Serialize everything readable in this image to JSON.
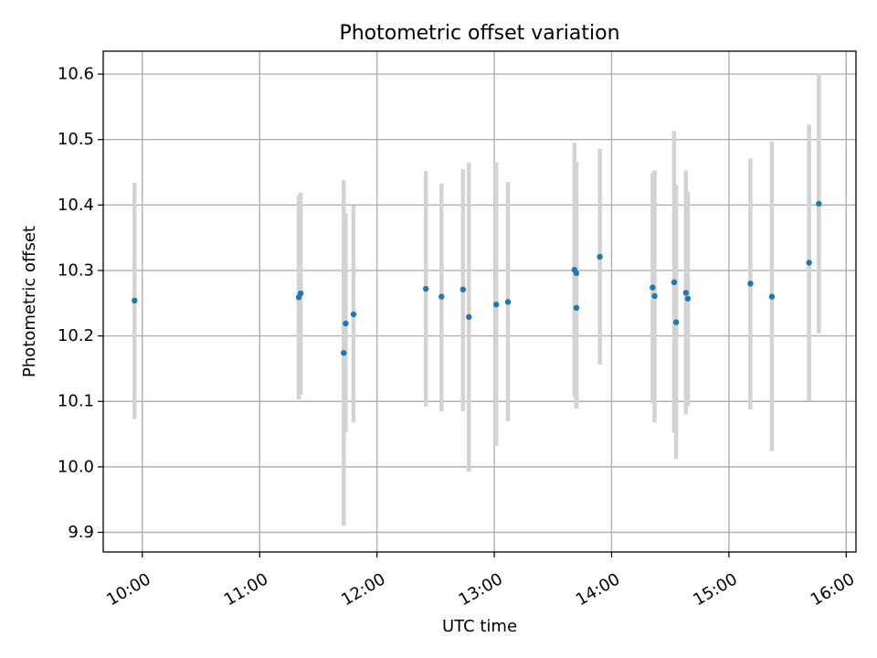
{
  "chart_data": {
    "type": "scatter",
    "title": "Photometric offset variation",
    "xlabel": "UTC time",
    "ylabel": "Photometric offset",
    "x_tick_labels": [
      "10:00",
      "11:00",
      "12:00",
      "13:00",
      "14:00",
      "15:00",
      "16:00"
    ],
    "y_tick_labels": [
      "9.9",
      "10.0",
      "10.1",
      "10.2",
      "10.3",
      "10.4",
      "10.5",
      "10.6"
    ],
    "x_ticks": [
      "10:00",
      "11:00",
      "12:00",
      "13:00",
      "14:00",
      "15:00",
      "16:00"
    ],
    "y_ticks": [
      9.9,
      10.0,
      10.1,
      10.2,
      10.3,
      10.4,
      10.5,
      10.6
    ],
    "xlim": [
      "09:40",
      "16:05"
    ],
    "ylim": [
      9.87,
      10.635
    ],
    "grid": true,
    "marker_color": "#1f77b4",
    "errorbar_color": "#d3d3d3",
    "points": [
      {
        "x": "09:56",
        "y": 10.254,
        "ylow": 10.073,
        "yhigh": 10.434
      },
      {
        "x": "11:20",
        "y": 10.259,
        "ylow": 10.103,
        "yhigh": 10.415
      },
      {
        "x": "11:21",
        "y": 10.265,
        "ylow": 10.11,
        "yhigh": 10.419
      },
      {
        "x": "11:43",
        "y": 10.174,
        "ylow": 9.91,
        "yhigh": 10.438
      },
      {
        "x": "11:44",
        "y": 10.219,
        "ylow": 10.053,
        "yhigh": 10.387
      },
      {
        "x": "11:48",
        "y": 10.233,
        "ylow": 10.068,
        "yhigh": 10.399
      },
      {
        "x": "12:25",
        "y": 10.272,
        "ylow": 10.092,
        "yhigh": 10.452
      },
      {
        "x": "12:33",
        "y": 10.26,
        "ylow": 10.085,
        "yhigh": 10.433
      },
      {
        "x": "12:44",
        "y": 10.271,
        "ylow": 10.085,
        "yhigh": 10.455
      },
      {
        "x": "12:47",
        "y": 10.229,
        "ylow": 9.993,
        "yhigh": 10.465
      },
      {
        "x": "13:01",
        "y": 10.248,
        "ylow": 10.032,
        "yhigh": 10.465
      },
      {
        "x": "13:07",
        "y": 10.252,
        "ylow": 10.07,
        "yhigh": 10.435
      },
      {
        "x": "13:41",
        "y": 10.301,
        "ylow": 10.107,
        "yhigh": 10.495
      },
      {
        "x": "13:42",
        "y": 10.296,
        "ylow": 10.09,
        "yhigh": 10.466
      },
      {
        "x": "13:42",
        "y": 10.243,
        "ylow": 10.089,
        "yhigh": 10.4
      },
      {
        "x": "13:54",
        "y": 10.321,
        "ylow": 10.156,
        "yhigh": 10.486
      },
      {
        "x": "14:21",
        "y": 10.274,
        "ylow": 10.097,
        "yhigh": 10.449
      },
      {
        "x": "14:22",
        "y": 10.261,
        "ylow": 10.068,
        "yhigh": 10.453
      },
      {
        "x": "14:32",
        "y": 10.282,
        "ylow": 10.052,
        "yhigh": 10.513
      },
      {
        "x": "14:33",
        "y": 10.221,
        "ylow": 10.012,
        "yhigh": 10.431
      },
      {
        "x": "14:38",
        "y": 10.266,
        "ylow": 10.08,
        "yhigh": 10.453
      },
      {
        "x": "14:39",
        "y": 10.257,
        "ylow": 10.093,
        "yhigh": 10.42
      },
      {
        "x": "15:11",
        "y": 10.28,
        "ylow": 10.088,
        "yhigh": 10.471
      },
      {
        "x": "15:22",
        "y": 10.26,
        "ylow": 10.024,
        "yhigh": 10.497
      },
      {
        "x": "15:41",
        "y": 10.312,
        "ylow": 10.101,
        "yhigh": 10.523
      },
      {
        "x": "15:46",
        "y": 10.402,
        "ylow": 10.204,
        "yhigh": 10.601
      }
    ]
  }
}
